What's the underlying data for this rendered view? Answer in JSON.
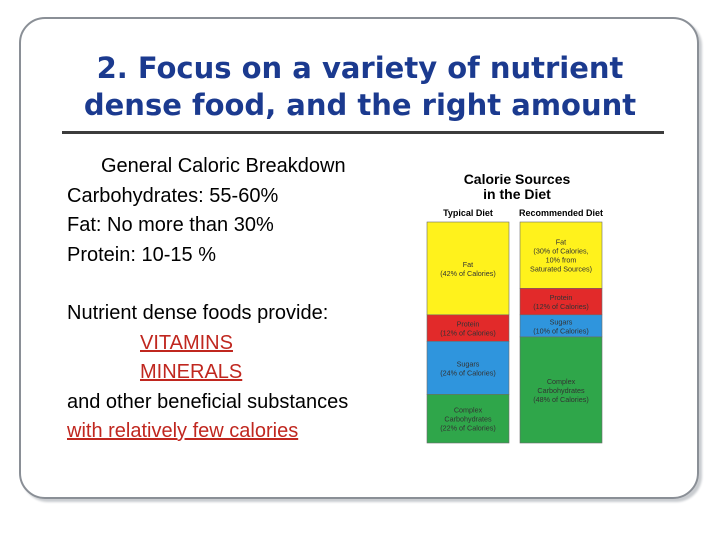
{
  "slide": {
    "title_line1": "2.  Focus on a variety of nutrient",
    "title_line2": "dense food, and the right amount",
    "breakdown_heading": "General Caloric Breakdown",
    "breakdown": [
      "Carbohydrates:  55-60%",
      "Fat:  No more than 30%",
      "Protein:  10-15 %"
    ],
    "nutrient_intro": "Nutrient dense foods provide:",
    "vitamins": "VITAMINS",
    "minerals": "MINERALS",
    "other": "and other beneficial substances",
    "closing": "with relatively few calories"
  },
  "colors": {
    "title": "#1b3a8f",
    "emphasis": "#c0271f",
    "fat": "#fff21c",
    "protein": "#e22a2a",
    "sugars": "#2f95dd",
    "complex": "#2fa64a"
  },
  "chart_data": {
    "type": "bar",
    "title": "Calorie Sources in the Diet",
    "categories": [
      "Typical Diet",
      "Recommended Diet"
    ],
    "series": [
      {
        "name": "Fat",
        "values": [
          42,
          30
        ],
        "labels": [
          "Fat\n(42% of Calories)",
          "Fat\n(30% of Calories,\n10% from\nSaturated Sources)"
        ]
      },
      {
        "name": "Protein",
        "values": [
          12,
          12
        ],
        "labels": [
          "Protein\n(12% of Calories)",
          "Protein\n(12% of Calories)"
        ]
      },
      {
        "name": "Sugars",
        "values": [
          24,
          10
        ],
        "labels": [
          "Sugars\n(24% of Calories)",
          "Sugars\n(10% of Calories)"
        ]
      },
      {
        "name": "Complex Carbohydrates",
        "values": [
          22,
          48
        ],
        "labels": [
          "Complex\nCarbohydrates\n(22% of Calories)",
          "Complex\nCarbohydrates\n(48% of Calories)"
        ]
      }
    ],
    "stack_order_top_to_bottom": [
      "Fat",
      "Protein",
      "Sugars",
      "Complex Carbohydrates"
    ],
    "ylim": [
      0,
      100
    ]
  }
}
